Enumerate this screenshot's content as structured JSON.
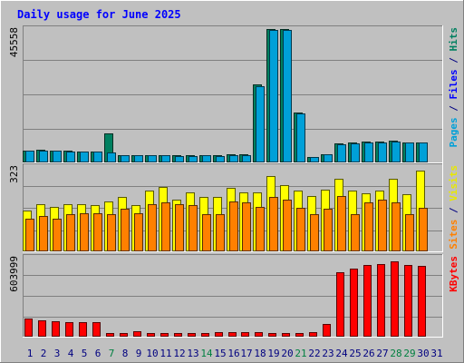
{
  "chart_data": {
    "type": "bar",
    "title": "Daily usage for June 2025",
    "days": [
      "1",
      "2",
      "3",
      "4",
      "5",
      "6",
      "7",
      "8",
      "9",
      "10",
      "11",
      "12",
      "13",
      "14",
      "15",
      "16",
      "17",
      "18",
      "19",
      "20",
      "21",
      "22",
      "23",
      "24",
      "25",
      "26",
      "27",
      "28",
      "29",
      "30",
      "31"
    ],
    "weekend_days": [
      "7",
      "14",
      "21",
      "28",
      "29"
    ],
    "panels": [
      {
        "id": "hits",
        "top_label": "45558",
        "legend": [
          {
            "text": "Pages",
            "color": "#00a0d8"
          },
          {
            "text": " / ",
            "color": "#000080"
          },
          {
            "text": "Files",
            "color": "#0000ff"
          },
          {
            "text": " / ",
            "color": "#000080"
          },
          {
            "text": "Hits",
            "color": "#008060"
          }
        ],
        "ymax": 45558,
        "series": [
          {
            "name": "Hits",
            "color": "#008060",
            "values": [
              4000,
              4200,
              4000,
              3900,
              3800,
              3700,
              10000,
              2500,
              2500,
              2600,
              2500,
              2400,
              2400,
              2500,
              2400,
              2700,
              2700,
              26500,
              45300,
              45100,
              16800,
              1900,
              2800,
              6500,
              6700,
              7000,
              7000,
              7300,
              6800,
              6900,
              null
            ]
          },
          {
            "name": "Files",
            "color": "#00a0d8",
            "values": [
              3900,
              4100,
              3900,
              3800,
              3700,
              3600,
              3500,
              2400,
              2400,
              2500,
              2400,
              2300,
              2300,
              2400,
              2300,
              2600,
              2600,
              26000,
              45000,
              44800,
              16500,
              1800,
              2700,
              6300,
              6600,
              6900,
              6900,
              7200,
              6700,
              6800,
              null
            ]
          }
        ]
      },
      {
        "id": "visits",
        "top_label": "323",
        "legend": [
          {
            "text": "Sites",
            "color": "#ff8000"
          },
          {
            "text": " / ",
            "color": "#000080"
          },
          {
            "text": "Visits",
            "color": "#e8e800"
          }
        ],
        "ymax": 323,
        "series": [
          {
            "name": "Visits",
            "color": "#ffff00",
            "values": [
              155,
              180,
              170,
              180,
              180,
              175,
              190,
              205,
              175,
              230,
              245,
              195,
              225,
              205,
              205,
              240,
              225,
              225,
              285,
              250,
              230,
              210,
              235,
              275,
              230,
              220,
              230,
              275,
              215,
              305,
              null
            ]
          },
          {
            "name": "Sites",
            "color": "#ff8000",
            "values": [
              125,
              135,
              125,
              140,
              145,
              145,
              140,
              160,
              145,
              180,
              185,
              180,
              175,
              140,
              140,
              190,
              185,
              170,
              205,
              195,
              165,
              140,
              160,
              210,
              140,
              185,
              195,
              185,
              140,
              165,
              null
            ]
          }
        ]
      },
      {
        "id": "kbytes",
        "top_label": "603999",
        "legend": [
          {
            "text": "KBytes",
            "color": "#ff0000"
          }
        ],
        "ymax": 603999,
        "series": [
          {
            "name": "KBytes",
            "color": "#ff0000",
            "values": [
              138000,
              123000,
              118000,
              112000,
              108000,
              110000,
              30000,
              26000,
              38000,
              28000,
              28000,
              28000,
              28000,
              28000,
              33000,
              36000,
              34000,
              31000,
              29000,
              29000,
              29000,
              36000,
              99000,
              485000,
              514000,
              540000,
              546000,
              569000,
              539000,
              537000,
              null
            ]
          }
        ]
      }
    ]
  }
}
